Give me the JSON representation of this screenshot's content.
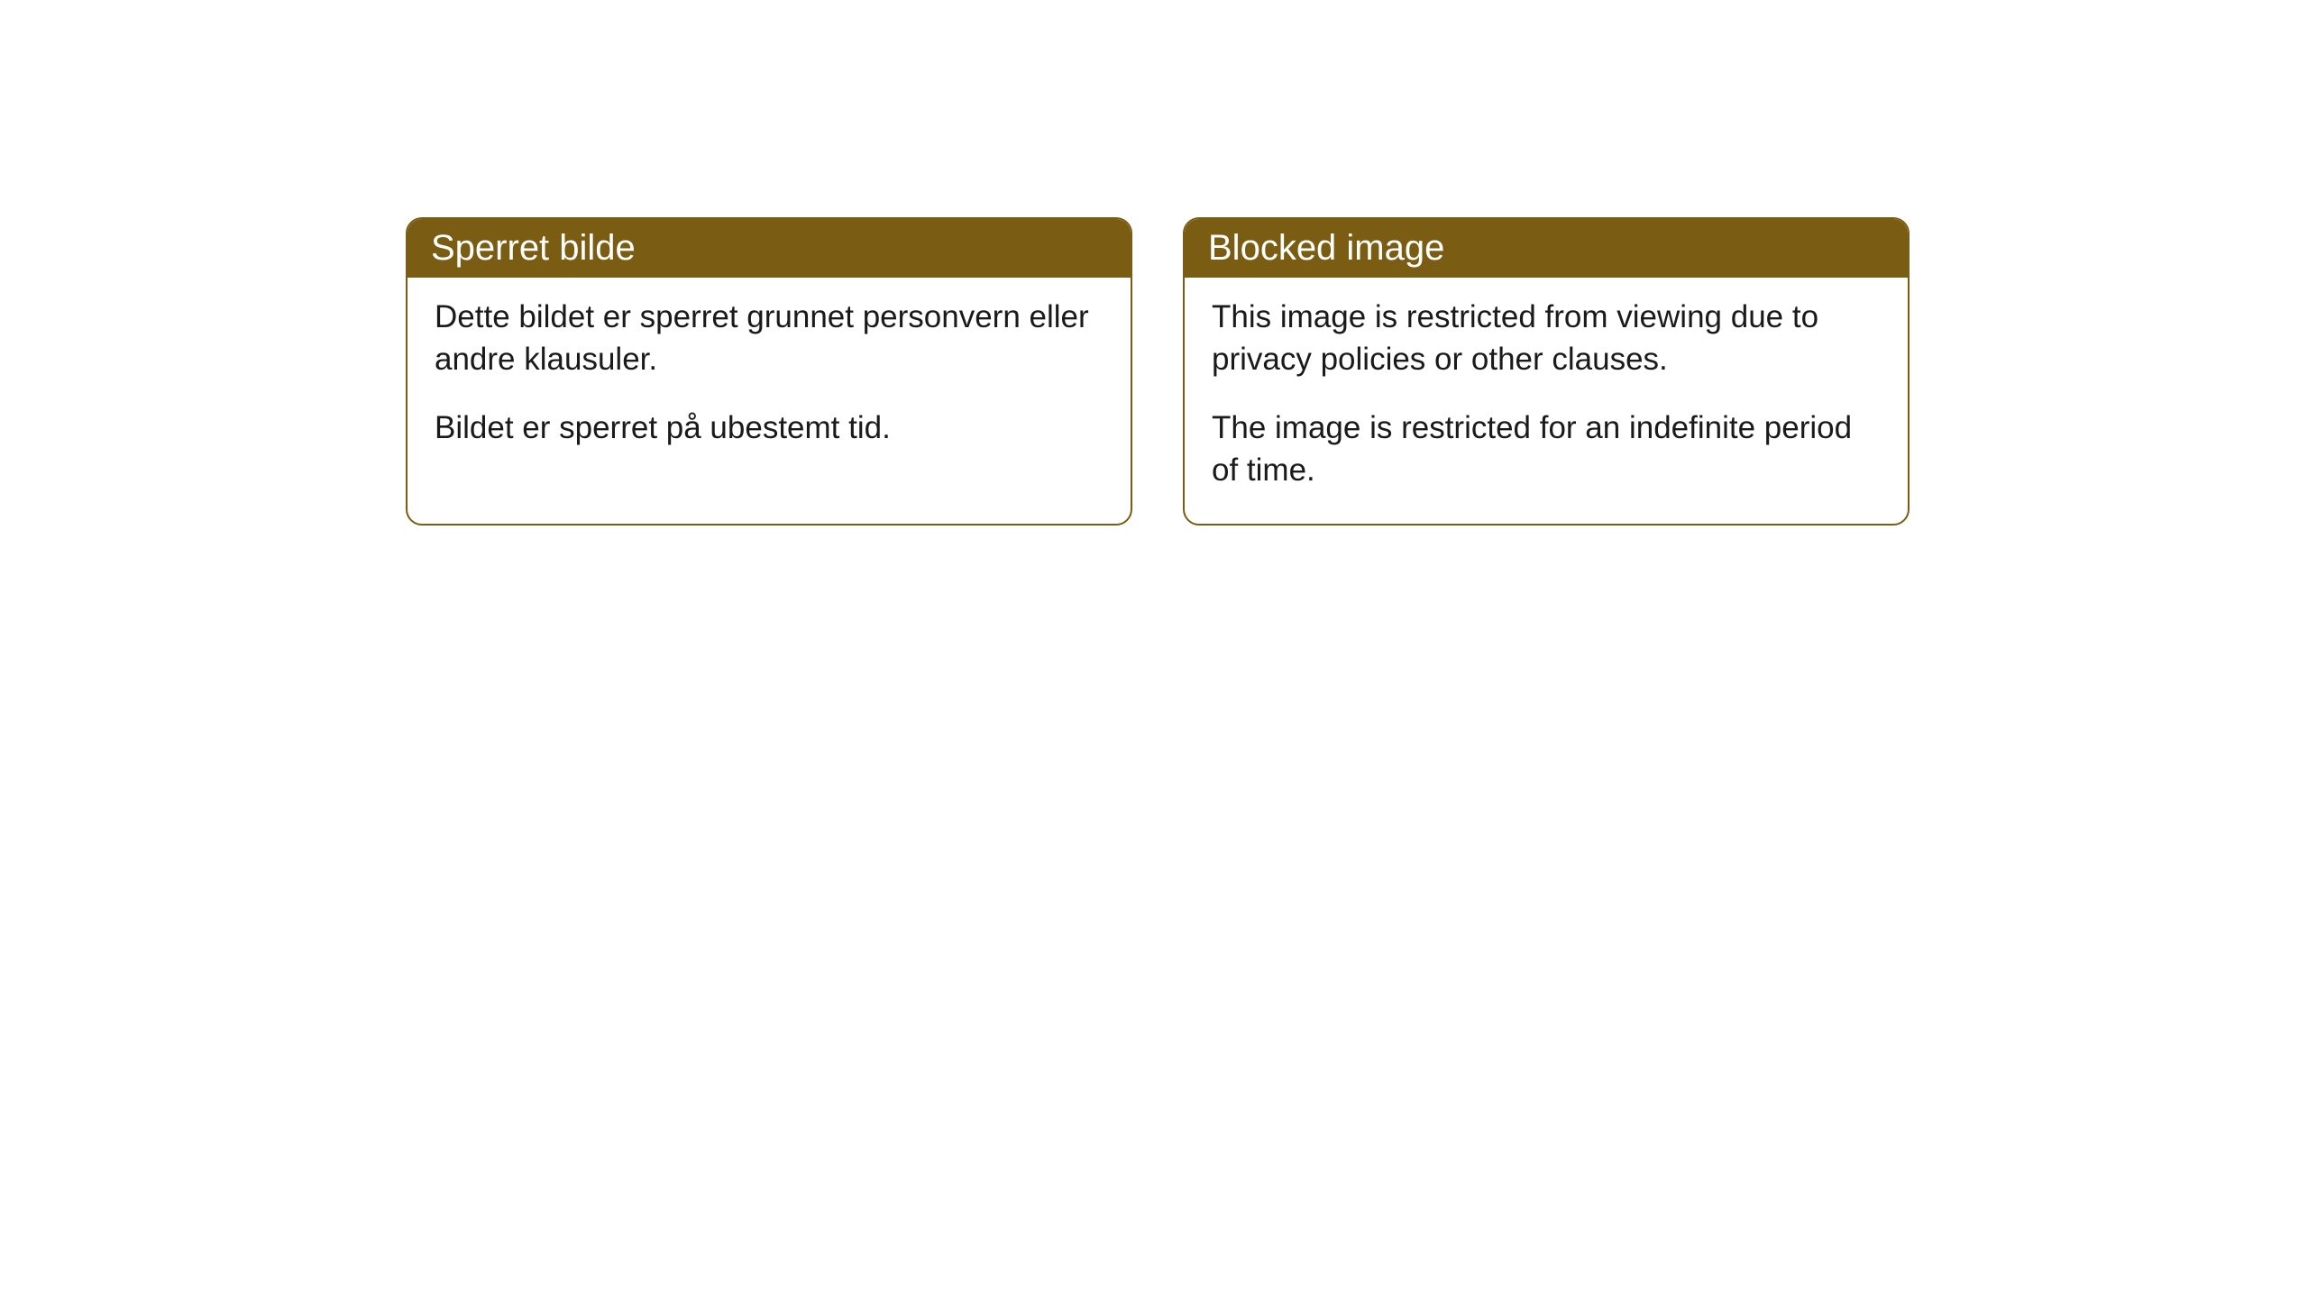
{
  "cards": [
    {
      "title": "Sperret bilde",
      "para1": "Dette bildet er sperret grunnet personvern eller andre klausuler.",
      "para2": "Bildet er sperret på ubestemt tid."
    },
    {
      "title": "Blocked image",
      "para1": "This image is restricted from viewing due to privacy policies or other clauses.",
      "para2": "The image is restricted for an indefinite period of time."
    }
  ],
  "style": {
    "header_bg": "#7a5d13",
    "header_text_color": "#ffffff",
    "border_color": "#7a5d13",
    "body_bg": "#ffffff",
    "body_text_color": "#1a1a1a",
    "border_radius": 18,
    "title_fontsize": 40,
    "body_fontsize": 35
  }
}
